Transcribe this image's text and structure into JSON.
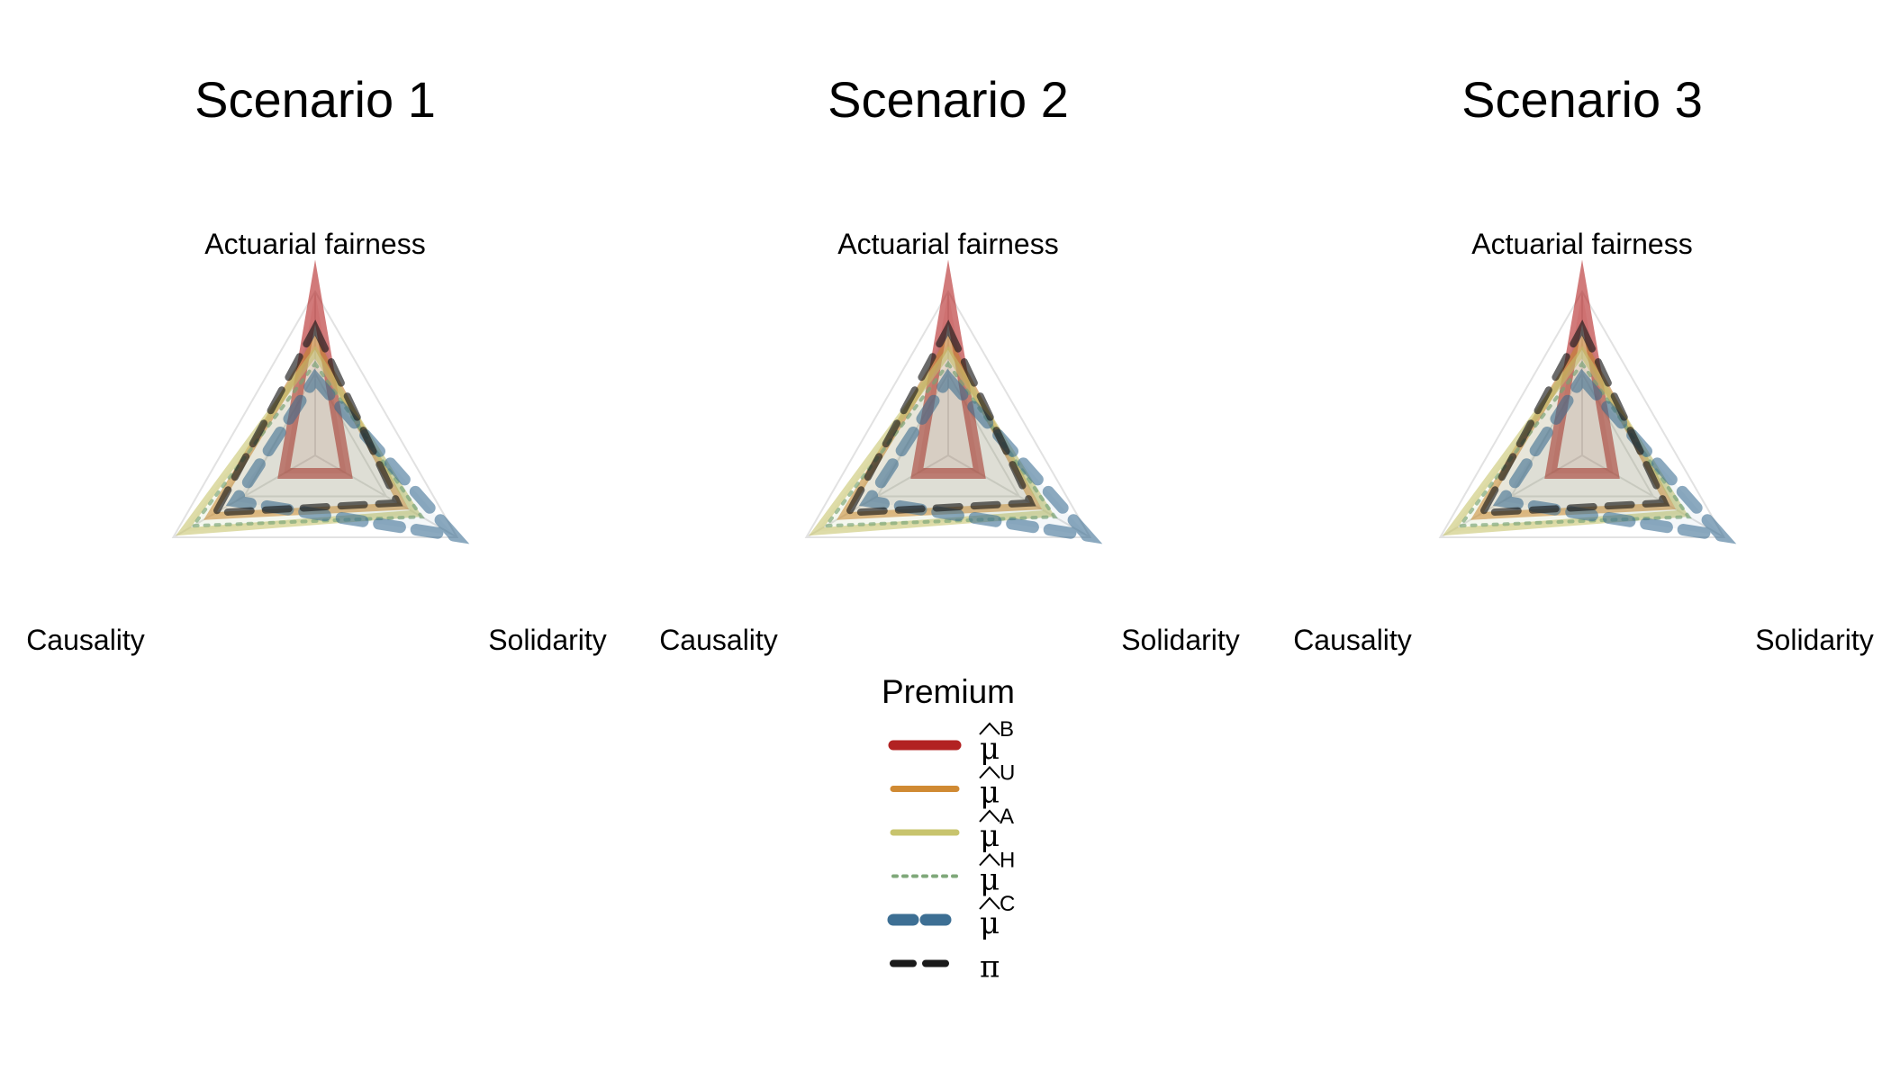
{
  "chart_data": {
    "type": "radar",
    "axes": [
      "Actuarial fairness",
      "Solidarity",
      "Causality"
    ],
    "axis_range": [
      0,
      1
    ],
    "grid": true,
    "legend": {
      "title": "Premium",
      "placement": "bottom-center",
      "entries": [
        {
          "key": "B",
          "base": "μ",
          "hat": true,
          "sup": "B",
          "color": "#B22222",
          "style": "solid"
        },
        {
          "key": "U",
          "base": "μ",
          "hat": true,
          "sup": "U",
          "color": "#D08A33",
          "style": "solid"
        },
        {
          "key": "A",
          "base": "μ",
          "hat": true,
          "sup": "A",
          "color": "#C8C46E",
          "style": "solid"
        },
        {
          "key": "H",
          "base": "μ",
          "hat": true,
          "sup": "H",
          "color": "#7FA87A",
          "style": "dotted"
        },
        {
          "key": "C",
          "base": "μ",
          "hat": true,
          "sup": "C",
          "color": "#3D6F94",
          "style": "dashed"
        },
        {
          "key": "P",
          "base": "π",
          "hat": false,
          "sup": "",
          "color": "#1A1A1A",
          "style": "dashed"
        }
      ]
    },
    "panels": [
      {
        "title": "Scenario 1",
        "series": [
          {
            "key": "B",
            "values": [
              1.0,
              0.22,
              0.22
            ]
          },
          {
            "key": "U",
            "values": [
              0.69,
              0.62,
              0.74
            ]
          },
          {
            "key": "A",
            "values": [
              0.63,
              0.71,
              0.93
            ]
          },
          {
            "key": "H",
            "values": [
              0.56,
              0.75,
              0.86
            ]
          },
          {
            "key": "C",
            "values": [
              0.47,
              0.98,
              0.56
            ]
          },
          {
            "key": "P",
            "values": [
              0.78,
              0.58,
              0.7
            ]
          }
        ]
      },
      {
        "title": "Scenario 2",
        "series": [
          {
            "key": "B",
            "values": [
              1.0,
              0.22,
              0.22
            ]
          },
          {
            "key": "U",
            "values": [
              0.69,
              0.62,
              0.74
            ]
          },
          {
            "key": "A",
            "values": [
              0.63,
              0.71,
              0.93
            ]
          },
          {
            "key": "H",
            "values": [
              0.56,
              0.75,
              0.86
            ]
          },
          {
            "key": "C",
            "values": [
              0.47,
              0.98,
              0.56
            ]
          },
          {
            "key": "P",
            "values": [
              0.78,
              0.58,
              0.7
            ]
          }
        ]
      },
      {
        "title": "Scenario 3",
        "series": [
          {
            "key": "B",
            "values": [
              1.0,
              0.22,
              0.22
            ]
          },
          {
            "key": "U",
            "values": [
              0.69,
              0.62,
              0.74
            ]
          },
          {
            "key": "A",
            "values": [
              0.63,
              0.71,
              0.93
            ]
          },
          {
            "key": "H",
            "values": [
              0.56,
              0.75,
              0.86
            ]
          },
          {
            "key": "C",
            "values": [
              0.47,
              0.98,
              0.56
            ]
          },
          {
            "key": "P",
            "values": [
              0.78,
              0.58,
              0.7
            ]
          }
        ]
      }
    ]
  }
}
